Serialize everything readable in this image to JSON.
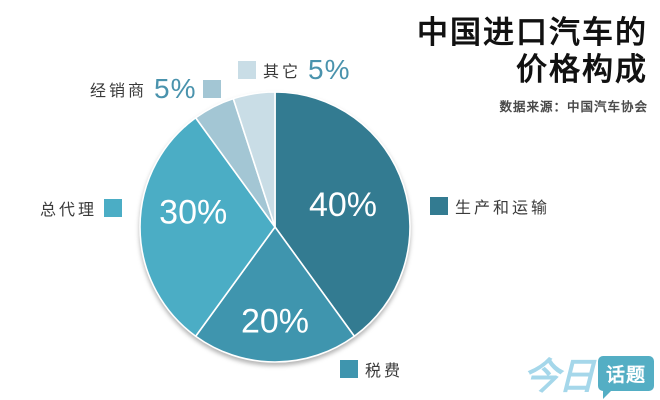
{
  "header": {
    "title_line1": "中国进口汽车的",
    "title_line2": "价格构成",
    "source": "数据来源：中国汽车协会"
  },
  "chart_data": {
    "type": "pie",
    "title": "中国进口汽车的价格构成",
    "source": "数据来源：中国汽车协会",
    "direction": "clockwise",
    "start_angle": "12-oclock",
    "slices": [
      {
        "label": "生产和运输",
        "value": 40,
        "display": "40%",
        "color": "#337b91",
        "label_side": "right"
      },
      {
        "label": "税费",
        "value": 20,
        "display": "20%",
        "color": "#3f95ae",
        "label_side": "bottom"
      },
      {
        "label": "总代理",
        "value": 30,
        "display": "30%",
        "color": "#4badc5",
        "label_side": "left"
      },
      {
        "label": "经销商",
        "value": 5,
        "display": "5%",
        "color": "#a3c6d4",
        "label_side": "top-left"
      },
      {
        "label": "其它",
        "value": 5,
        "display": "5%",
        "color": "#c9dde6",
        "label_side": "top"
      }
    ]
  },
  "logo": {
    "text_script": "今日",
    "text_bubble": "话题",
    "script_color": "#a5d7ea",
    "bubble_color": "#54aec4"
  },
  "colors": {
    "slice_percent_text": "#ffffff",
    "label_text": "#3a3a3a",
    "percent_accent": "#4a93ad"
  }
}
